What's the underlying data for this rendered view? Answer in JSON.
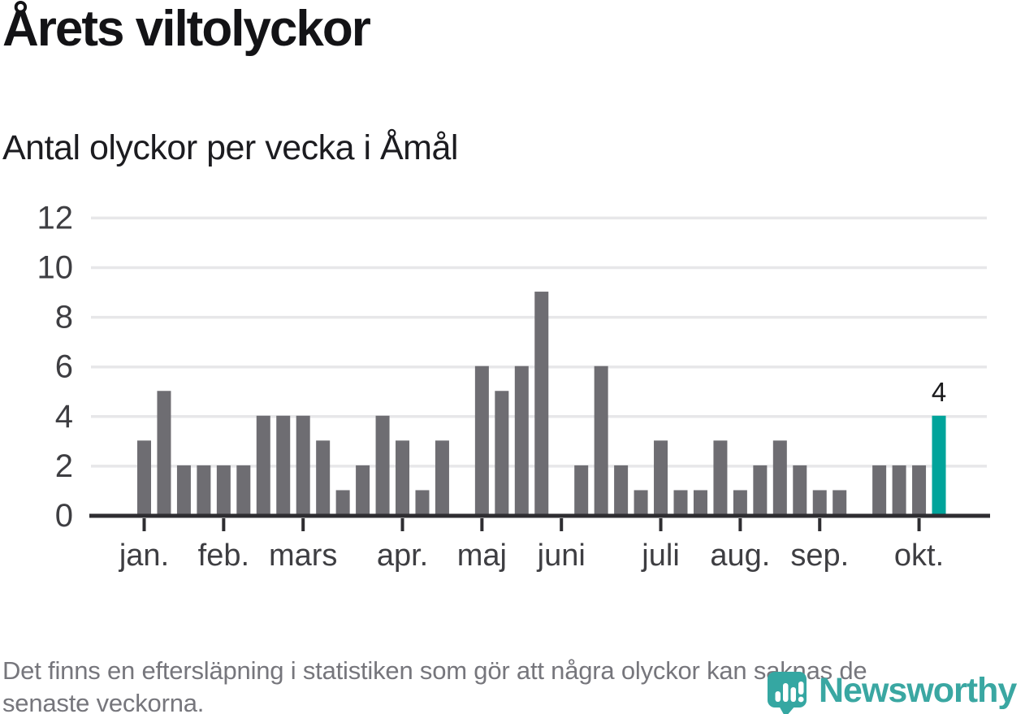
{
  "header": {
    "title": "Årets viltolyckor",
    "subtitle": "Antal olyckor per vecka i Åmål"
  },
  "chart_data": {
    "type": "bar",
    "title": "Årets viltolyckor",
    "subtitle": "Antal olyckor per vecka i Åmål",
    "xlabel": "",
    "ylabel": "",
    "x_unit": "vecka",
    "ylim": [
      0,
      12
    ],
    "yticks": [
      0,
      2,
      4,
      6,
      8,
      10,
      12
    ],
    "grid": true,
    "values": [
      3,
      5,
      2,
      2,
      2,
      2,
      4,
      4,
      4,
      3,
      1,
      2,
      4,
      3,
      1,
      3,
      null,
      6,
      5,
      6,
      9,
      null,
      2,
      6,
      2,
      1,
      3,
      1,
      1,
      3,
      1,
      2,
      3,
      2,
      1,
      1,
      null,
      2,
      2,
      2,
      4
    ],
    "months": [
      {
        "label": "jan.",
        "week_index": 0
      },
      {
        "label": "feb.",
        "week_index": 4
      },
      {
        "label": "mars",
        "week_index": 8
      },
      {
        "label": "apr.",
        "week_index": 13
      },
      {
        "label": "maj",
        "week_index": 17
      },
      {
        "label": "juni",
        "week_index": 21
      },
      {
        "label": "juli",
        "week_index": 26
      },
      {
        "label": "aug.",
        "week_index": 30
      },
      {
        "label": "sep.",
        "week_index": 34
      },
      {
        "label": "okt.",
        "week_index": 39
      }
    ],
    "highlight": {
      "index": 40,
      "value": 4,
      "data_label": "4"
    },
    "colors": {
      "bar": "#6e6d72",
      "highlight": "#00a49b",
      "axis": "#2e2d31",
      "grid": "#e7e7e9",
      "tick_label": "#3e3e42",
      "value_label": "#1a1a1c"
    }
  },
  "footer": {
    "lines": [
      "Det finns en eftersläpning i statistiken som gör att några olyckor kan saknas de",
      "senaste veckorna."
    ]
  },
  "logo": {
    "wordmark": "Newsworthy",
    "color": "#3aa7a2",
    "icon": "newsworthy-pin-icon"
  }
}
